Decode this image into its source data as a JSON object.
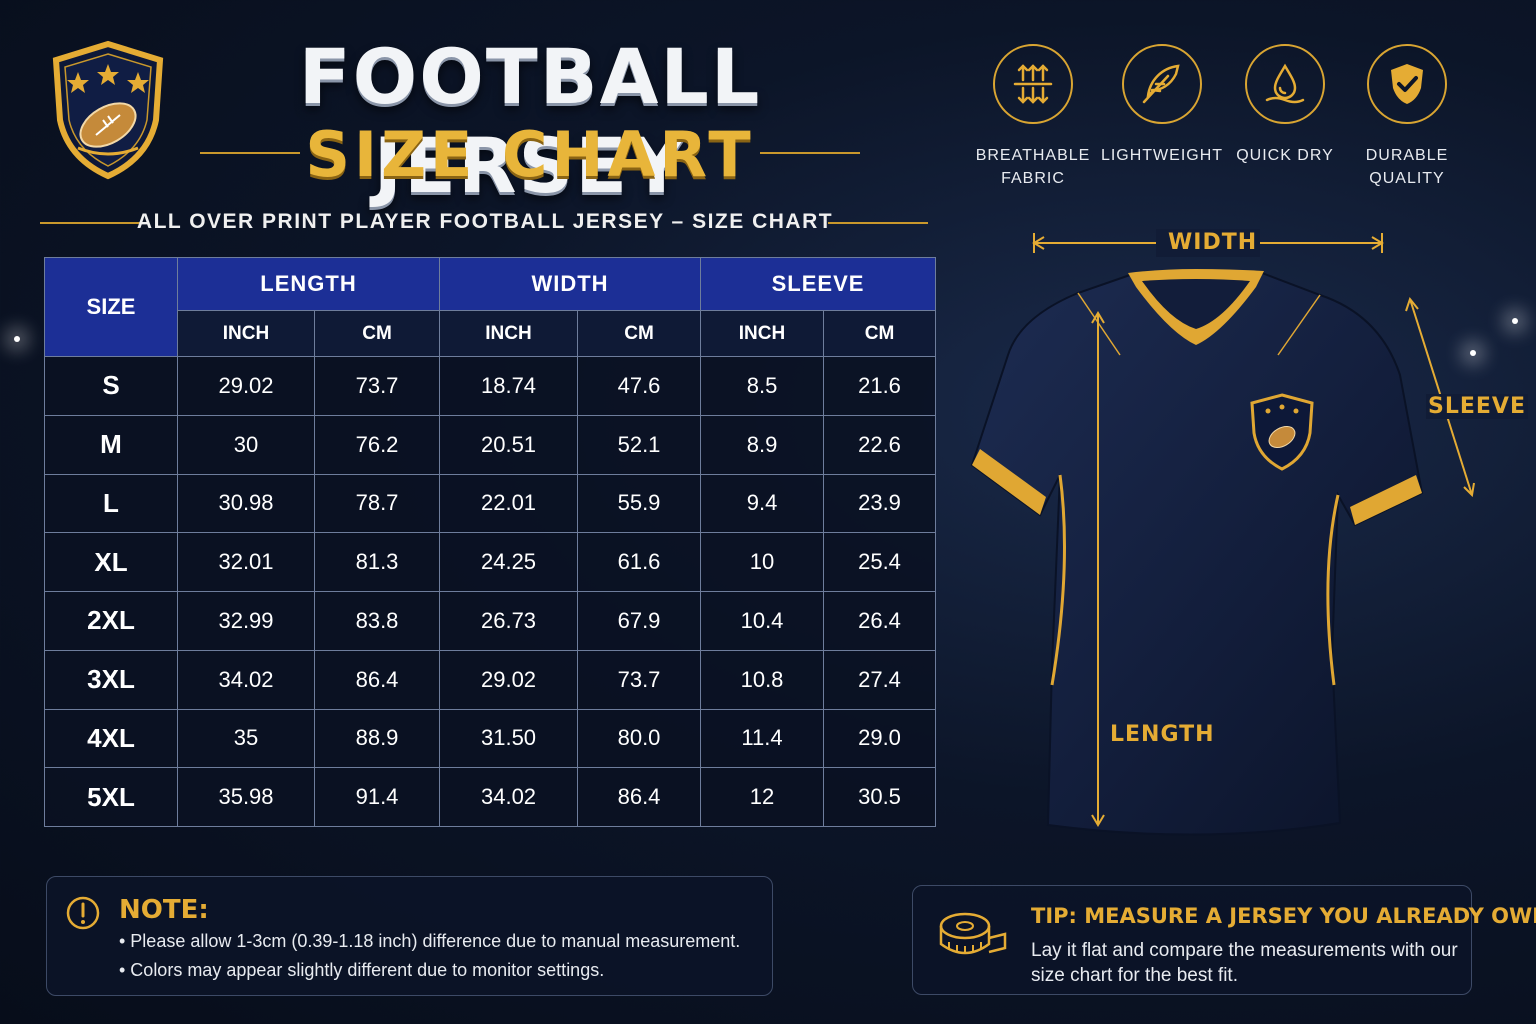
{
  "header": {
    "title_line1": "FOOTBALL JERSEY",
    "title_line2": "SIZE CHART",
    "subtitle": "ALL OVER PRINT PLAYER FOOTBALL JERSEY – SIZE CHART"
  },
  "features": [
    {
      "icon": "airflow-arrows-icon",
      "label": "BREATHABLE\nFABRIC"
    },
    {
      "icon": "feather-icon",
      "label": "LIGHTWEIGHT"
    },
    {
      "icon": "water-drop-icon",
      "label": "QUICK DRY"
    },
    {
      "icon": "shield-check-icon",
      "label": "DURABLE\nQUALITY"
    }
  ],
  "table": {
    "size_header": "SIZE",
    "groups": [
      "LENGTH",
      "WIDTH",
      "SLEEVE"
    ],
    "units": [
      "INCH",
      "CM",
      "INCH",
      "CM",
      "INCH",
      "CM"
    ],
    "rows": [
      {
        "size": "S",
        "values": [
          "29.02",
          "73.7",
          "18.74",
          "47.6",
          "8.5",
          "21.6"
        ]
      },
      {
        "size": "M",
        "values": [
          "30",
          "76.2",
          "20.51",
          "52.1",
          "8.9",
          "22.6"
        ]
      },
      {
        "size": "L",
        "values": [
          "30.98",
          "78.7",
          "22.01",
          "55.9",
          "9.4",
          "23.9"
        ]
      },
      {
        "size": "XL",
        "values": [
          "32.01",
          "81.3",
          "24.25",
          "61.6",
          "10",
          "25.4"
        ]
      },
      {
        "size": "2XL",
        "values": [
          "32.99",
          "83.8",
          "26.73",
          "67.9",
          "10.4",
          "26.4"
        ]
      },
      {
        "size": "3XL",
        "values": [
          "34.02",
          "86.4",
          "29.02",
          "73.7",
          "10.8",
          "27.4"
        ]
      },
      {
        "size": "4XL",
        "values": [
          "35",
          "88.9",
          "31.50",
          "80.0",
          "11.4",
          "29.0"
        ]
      },
      {
        "size": "5XL",
        "values": [
          "35.98",
          "91.4",
          "34.02",
          "86.4",
          "12",
          "30.5"
        ]
      }
    ]
  },
  "diagram": {
    "width_label": "WIDTH",
    "length_label": "LENGTH",
    "sleeve_label": "SLEEVE"
  },
  "note": {
    "title": "NOTE:",
    "items": [
      "• Please allow 1-3cm (0.39-1.18 inch) difference due to manual measurement.",
      "• Colors may appear slightly different due to monitor settings."
    ]
  },
  "tip": {
    "title": "TIP: MEASURE A JERSEY YOU ALREADY OWN",
    "text": "Lay it flat and compare the measurements with our size chart for the best fit."
  },
  "colors": {
    "gold": "#e5ac34",
    "header_blue": "#1c2f96",
    "navy": "#0c1528"
  }
}
